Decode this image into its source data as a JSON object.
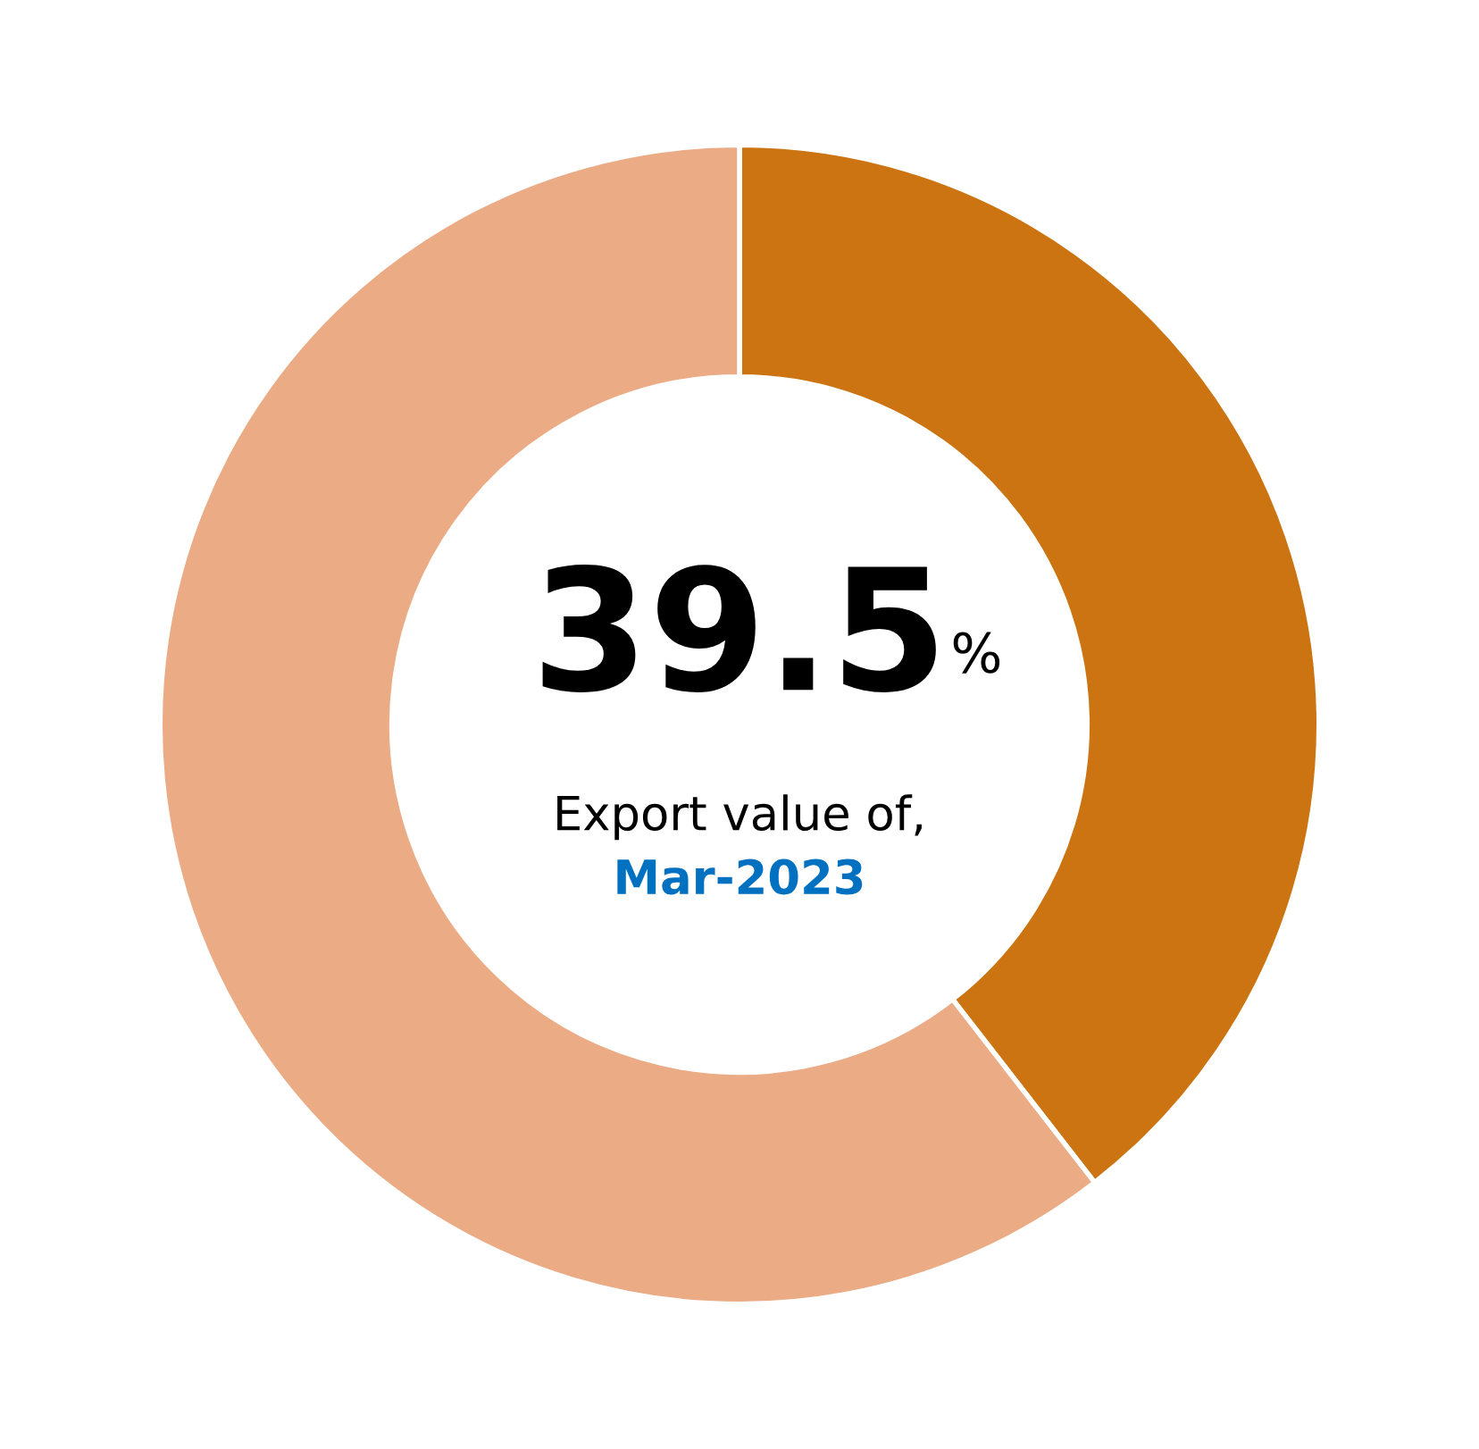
{
  "chart_data": {
    "type": "donut",
    "categories": [
      null,
      null
    ],
    "values": [
      39.5,
      60.5
    ],
    "colors": [
      "#cc7411",
      "#eaab85"
    ],
    "value_labels": [
      "39.5%",
      null
    ],
    "annotations": [
      "Export value of,",
      "Mar-2023"
    ],
    "legend": false
  }
}
